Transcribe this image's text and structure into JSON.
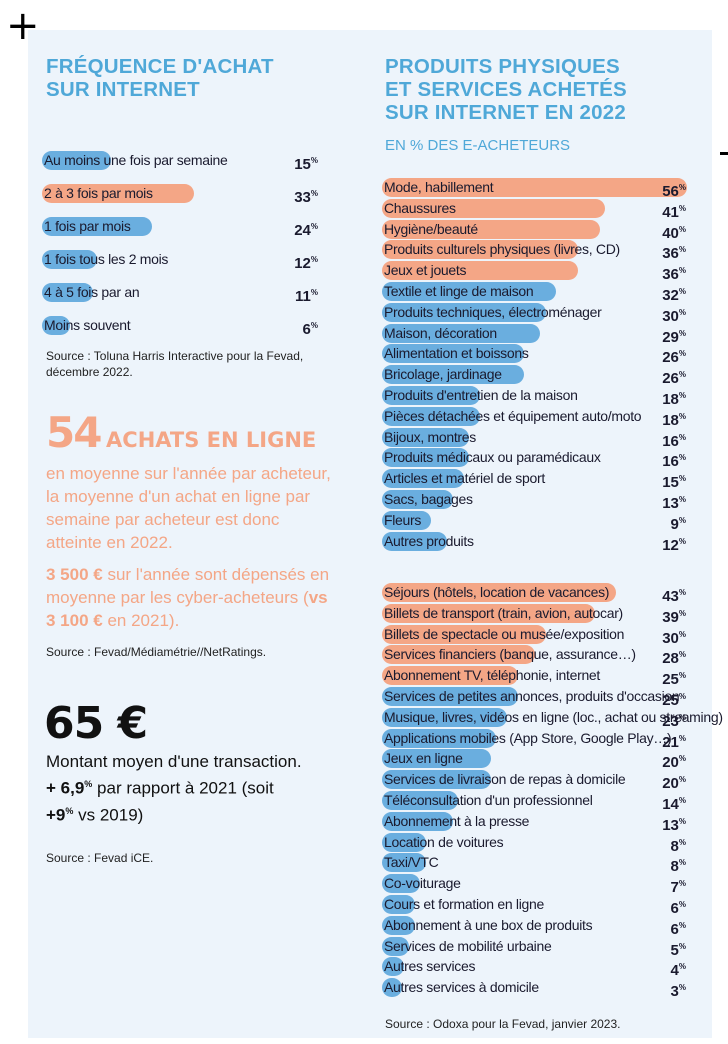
{
  "colors": {
    "blue": "#6aaedf",
    "orange": "#f4a686",
    "title": "#4fa8d8"
  },
  "left": {
    "title_line1": "FRÉQUENCE D'ACHAT",
    "title_line2": "SUR INTERNET",
    "source1": "Source : Toluna Harris Interactive pour la Fevad, décembre 2022.",
    "stat54_number": "54",
    "stat54_label": "ACHATS EN LIGNE",
    "stat54_desc": "en moyenne sur l'année par acheteur, la moyenne d'un achat en ligne par semaine par acheteur est donc atteinte en 2022.",
    "amount_bold": "3 500 €",
    "amount_rest1": " sur l'année sont dépensés en moyenne par les cyber-acheteurs (",
    "amount_vs": "vs 3 100 €",
    "amount_rest2": " en 2021).",
    "source2": "Source : Fevad/Médiamétrie//NetRatings.",
    "stat65": "65 €",
    "stat65_line1": "Montant moyen d'une transaction.",
    "stat65_line2a": "+ 6,9",
    "stat65_line2b": " par rapport à 2021 (soit",
    "stat65_line3a": "+9",
    "stat65_line3b": " vs 2019)",
    "source3": "Source : Fevad iCE."
  },
  "right": {
    "title_line1": "PRODUITS PHYSIQUES",
    "title_line2": "ET SERVICES ACHETÉS",
    "title_line3": "SUR INTERNET EN 2022",
    "subtitle": "EN % DES E-ACHETEURS",
    "source": "Source : Odoxa pour la Fevad, janvier 2023."
  },
  "chart_data": [
    {
      "type": "bar",
      "title": "FRÉQUENCE D'ACHAT SUR INTERNET",
      "unit": "%",
      "categories": [
        "Au moins une fois par semaine",
        "2 à 3 fois par mois",
        "1 fois par mois",
        "1 fois tous les 2 mois",
        "4 à 5 fois par an",
        "Moins souvent"
      ],
      "values": [
        15,
        33,
        24,
        12,
        11,
        6
      ],
      "highlight": [
        false,
        true,
        false,
        false,
        false,
        false
      ]
    },
    {
      "type": "bar",
      "title": "PRODUITS PHYSIQUES ET SERVICES ACHETÉS SUR INTERNET EN 2022",
      "subtitle": "EN % DES E-ACHETEURS",
      "unit": "%",
      "group": "Produits physiques",
      "categories": [
        "Mode, habillement",
        "Chaussures",
        "Hygiène/beauté",
        "Produits culturels physiques (livres, CD)",
        "Jeux et jouets",
        "Textile et linge de maison",
        "Produits techniques, électroménager",
        "Maison, décoration",
        "Alimentation et boissons",
        "Bricolage, jardinage",
        "Produits d'entretien de la maison",
        "Pièces détachées et équipement auto/moto",
        "Bijoux, montres",
        "Produits médicaux ou paramédicaux",
        "Articles et matériel de sport",
        "Sacs, bagages",
        "Fleurs",
        "Autres produits"
      ],
      "values": [
        56,
        41,
        40,
        36,
        36,
        32,
        30,
        29,
        26,
        26,
        18,
        18,
        16,
        16,
        15,
        13,
        9,
        12
      ],
      "highlight": [
        true,
        true,
        true,
        true,
        true,
        false,
        false,
        false,
        false,
        false,
        false,
        false,
        false,
        false,
        false,
        false,
        false,
        false
      ]
    },
    {
      "type": "bar",
      "group": "Services",
      "unit": "%",
      "categories": [
        "Séjours (hôtels, location de vacances)",
        "Billets de transport (train, avion, autocar)",
        "Billets de spectacle ou musée/exposition",
        "Services financiers (banque, assurance…)",
        "Abonnement TV, téléphonie, internet",
        "Services de petites annonces, produits d'occasion",
        "Musique, livres, vidéos en ligne (loc., achat ou streaming)",
        "Applications mobiles (App Store, Google Play…)",
        "Jeux en ligne",
        "Services de livraison de repas à domicile",
        "Téléconsultation d'un professionnel",
        "Abonnement à la presse",
        "Location de voitures",
        "Taxi/VTC",
        "Co-voiturage",
        "Cours et formation en ligne",
        "Abonnement à une box de produits",
        "Services de mobilité urbaine",
        "Autres services",
        "Autres services à domicile"
      ],
      "values": [
        43,
        39,
        30,
        28,
        25,
        25,
        23,
        21,
        20,
        20,
        14,
        13,
        8,
        8,
        7,
        6,
        6,
        5,
        4,
        3
      ],
      "highlight": [
        true,
        true,
        true,
        true,
        true,
        false,
        false,
        false,
        false,
        false,
        false,
        false,
        false,
        false,
        false,
        false,
        false,
        false,
        false,
        false
      ]
    }
  ]
}
